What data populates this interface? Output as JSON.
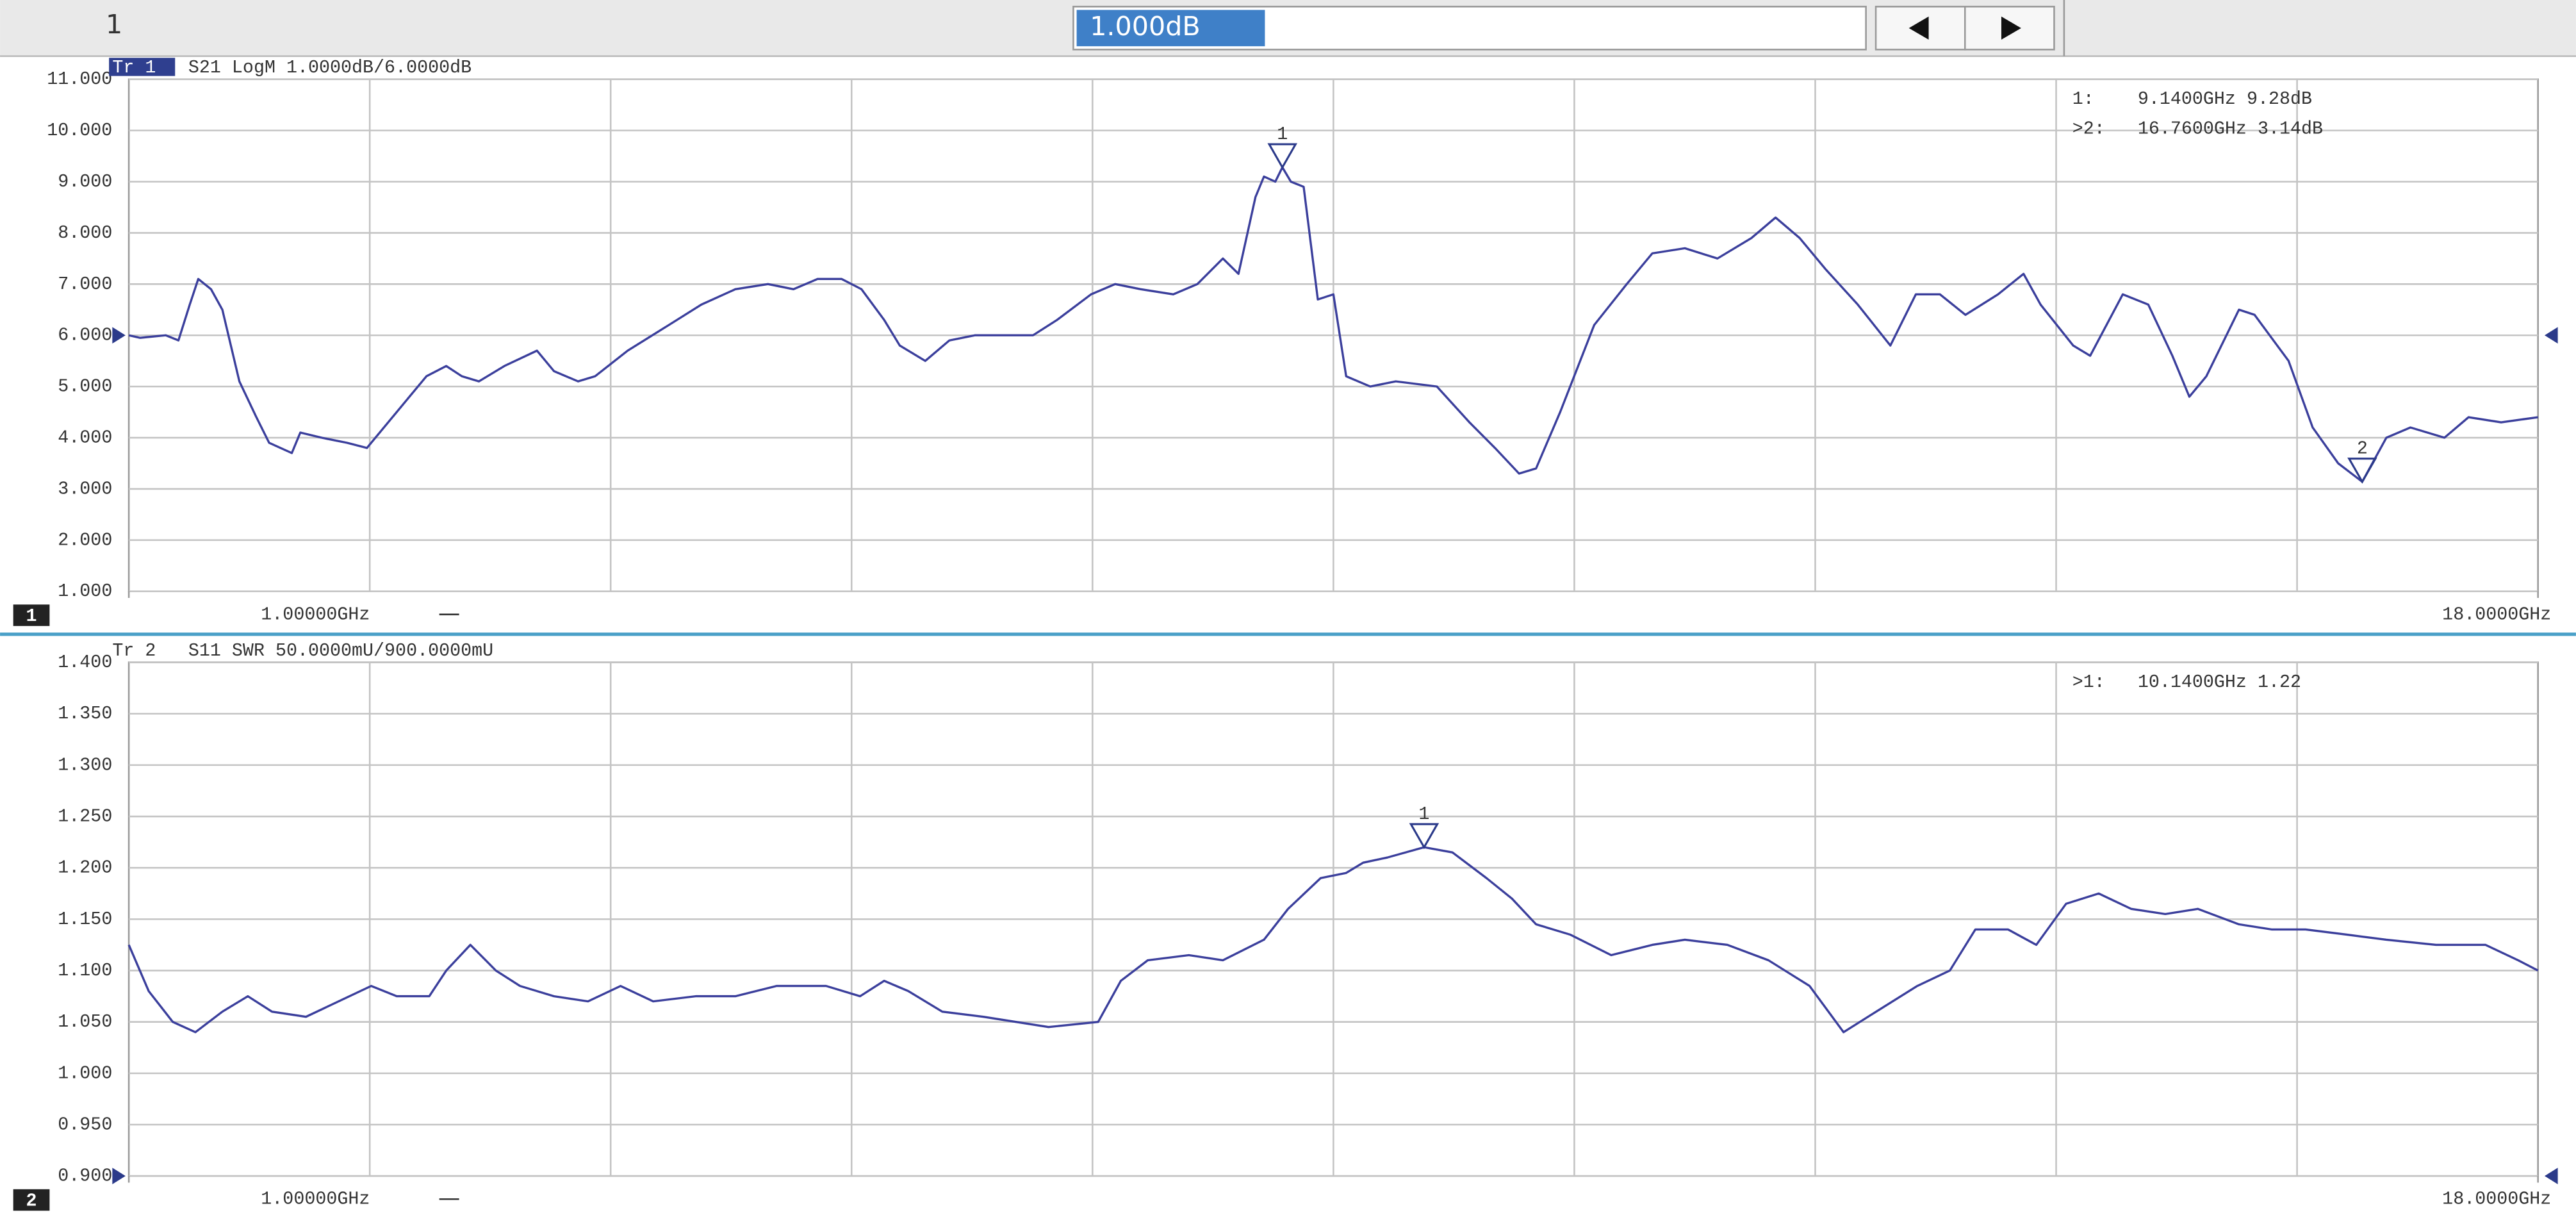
{
  "toolbar": {
    "channel": "1",
    "entry": "1.000dB"
  },
  "chart_data": [
    {
      "type": "line",
      "channel": "1",
      "trace": "Tr 1",
      "active": true,
      "title": "S21 LogM 1.0000dB/6.0000dB",
      "marker_readouts": [
        "1:    9.1400GHz 9.28dB",
        ">2:   16.7600GHz 3.14dB"
      ],
      "x": [
        1.0,
        1.08,
        1.26,
        1.35,
        1.43,
        1.49,
        1.58,
        1.66,
        1.78,
        1.9,
        1.99,
        2.07,
        2.15,
        2.21,
        2.36,
        2.54,
        2.68,
        2.83,
        2.95,
        3.1,
        3.24,
        3.35,
        3.47,
        3.65,
        3.88,
        4.0,
        4.17,
        4.29,
        4.52,
        4.81,
        5.04,
        5.28,
        5.51,
        5.69,
        5.86,
        6.03,
        6.17,
        6.33,
        6.44,
        6.62,
        6.79,
        6.97,
        7.14,
        7.38,
        7.55,
        7.79,
        7.96,
        8.14,
        8.37,
        8.54,
        8.72,
        8.83,
        8.95,
        9.01,
        9.09,
        9.14,
        9.2,
        9.29,
        9.39,
        9.5,
        9.59,
        9.76,
        9.94,
        10.23,
        10.46,
        10.64,
        10.81,
        10.93,
        11.1,
        11.34,
        11.57,
        11.75,
        11.98,
        12.21,
        12.45,
        12.62,
        12.79,
        12.97,
        13.2,
        13.43,
        13.61,
        13.78,
        13.96,
        14.19,
        14.37,
        14.49,
        14.72,
        14.84,
        15.07,
        15.25,
        15.42,
        15.54,
        15.66,
        15.89,
        16.0,
        16.24,
        16.41,
        16.59,
        16.76,
        16.93,
        17.1,
        17.34,
        17.51,
        17.74,
        18.0
      ],
      "series": [
        {
          "color": "#3b3f9c",
          "values": [
            6.0,
            5.95,
            6.0,
            5.9,
            6.6,
            7.1,
            6.9,
            6.5,
            5.1,
            4.4,
            3.9,
            3.8,
            3.7,
            4.1,
            4.0,
            3.9,
            3.8,
            4.3,
            4.7,
            5.2,
            5.4,
            5.2,
            5.1,
            5.4,
            5.7,
            5.3,
            5.1,
            5.2,
            5.7,
            6.2,
            6.6,
            6.9,
            7.0,
            6.9,
            7.1,
            7.1,
            6.9,
            6.3,
            5.8,
            5.5,
            5.9,
            6.0,
            6.0,
            6.0,
            6.3,
            6.8,
            7.0,
            6.9,
            6.8,
            7.0,
            7.5,
            7.2,
            8.7,
            9.1,
            9.0,
            9.28,
            9.0,
            8.9,
            6.7,
            6.8,
            5.2,
            5.0,
            5.1,
            5.0,
            4.3,
            3.8,
            3.3,
            3.4,
            4.5,
            6.2,
            7.0,
            7.6,
            7.7,
            7.5,
            7.9,
            8.3,
            7.9,
            7.3,
            6.6,
            5.8,
            6.8,
            6.8,
            6.4,
            6.8,
            7.2,
            6.6,
            5.8,
            5.6,
            6.8,
            6.6,
            5.6,
            4.8,
            5.2,
            6.5,
            6.4,
            5.5,
            4.2,
            3.5,
            3.14,
            4.0,
            4.2,
            4.0,
            4.4,
            4.3,
            4.4
          ]
        }
      ],
      "markers": [
        {
          "label": "1",
          "x": 9.14,
          "y": 9.28
        },
        {
          "label": "2",
          "x": 16.76,
          "y": 3.14
        }
      ],
      "xlim": [
        1,
        18
      ],
      "xticks": [
        {
          "value": 1,
          "label": "1.00000GHz"
        },
        {
          "value": 18,
          "label": "18.0000GHz"
        }
      ],
      "x_divisions": 10,
      "ylim": [
        1,
        11
      ],
      "yticks": [
        {
          "value": 1,
          "label": "1.000"
        },
        {
          "value": 2,
          "label": "2.000"
        },
        {
          "value": 3,
          "label": "3.000"
        },
        {
          "value": 4,
          "label": "4.000"
        },
        {
          "value": 5,
          "label": "5.000"
        },
        {
          "value": 6,
          "label": "6.000"
        },
        {
          "value": 7,
          "label": "7.000"
        },
        {
          "value": 8,
          "label": "8.000"
        },
        {
          "value": 9,
          "label": "9.000"
        },
        {
          "value": 10,
          "label": "10.000"
        },
        {
          "value": 11,
          "label": "11.000"
        }
      ],
      "reference": 6,
      "grid": true
    },
    {
      "type": "line",
      "channel": "2",
      "trace": "Tr 2",
      "active": false,
      "title": "S11 SWR 50.0000mU/900.0000mU",
      "marker_readouts": [
        ">1:   10.1400GHz 1.22"
      ],
      "x": [
        1.0,
        1.14,
        1.31,
        1.47,
        1.66,
        1.84,
        2.01,
        2.25,
        2.48,
        2.71,
        2.89,
        3.12,
        3.24,
        3.41,
        3.59,
        3.76,
        4.0,
        4.24,
        4.47,
        4.7,
        5.0,
        5.28,
        5.57,
        5.92,
        6.16,
        6.33,
        6.5,
        6.74,
        7.03,
        7.26,
        7.49,
        7.84,
        8.0,
        8.19,
        8.48,
        8.72,
        9.01,
        9.18,
        9.41,
        9.59,
        9.71,
        9.88,
        10.14,
        10.34,
        10.58,
        10.76,
        10.93,
        11.17,
        11.46,
        11.75,
        11.98,
        12.28,
        12.57,
        12.86,
        13.1,
        13.33,
        13.62,
        13.85,
        14.03,
        14.26,
        14.46,
        14.67,
        14.9,
        15.13,
        15.37,
        15.6,
        15.89,
        16.12,
        16.36,
        16.65,
        16.93,
        17.28,
        17.63,
        17.86,
        18.0
      ],
      "series": [
        {
          "color": "#3b3f9c",
          "values": [
            1.125,
            1.08,
            1.05,
            1.04,
            1.06,
            1.075,
            1.06,
            1.055,
            1.07,
            1.085,
            1.075,
            1.075,
            1.1,
            1.125,
            1.1,
            1.085,
            1.075,
            1.07,
            1.085,
            1.07,
            1.075,
            1.075,
            1.085,
            1.085,
            1.075,
            1.09,
            1.08,
            1.06,
            1.055,
            1.05,
            1.045,
            1.05,
            1.09,
            1.11,
            1.115,
            1.11,
            1.13,
            1.16,
            1.19,
            1.195,
            1.205,
            1.21,
            1.22,
            1.215,
            1.19,
            1.17,
            1.145,
            1.135,
            1.115,
            1.125,
            1.13,
            1.125,
            1.11,
            1.085,
            1.04,
            1.06,
            1.085,
            1.1,
            1.14,
            1.14,
            1.125,
            1.165,
            1.175,
            1.16,
            1.155,
            1.16,
            1.145,
            1.14,
            1.14,
            1.135,
            1.13,
            1.125,
            1.125,
            1.11,
            1.1
          ]
        }
      ],
      "markers": [
        {
          "label": "1",
          "x": 10.14,
          "y": 1.22
        }
      ],
      "xlim": [
        1,
        18
      ],
      "xticks": [
        {
          "value": 1,
          "label": "1.00000GHz"
        },
        {
          "value": 18,
          "label": "18.0000GHz"
        }
      ],
      "x_divisions": 10,
      "ylim": [
        0.9,
        1.4
      ],
      "yticks": [
        {
          "value": 0.9,
          "label": "0.900"
        },
        {
          "value": 0.95,
          "label": "0.950"
        },
        {
          "value": 1.0,
          "label": "1.000"
        },
        {
          "value": 1.05,
          "label": "1.050"
        },
        {
          "value": 1.1,
          "label": "1.100"
        },
        {
          "value": 1.15,
          "label": "1.150"
        },
        {
          "value": 1.2,
          "label": "1.200"
        },
        {
          "value": 1.25,
          "label": "1.250"
        },
        {
          "value": 1.3,
          "label": "1.300"
        },
        {
          "value": 1.35,
          "label": "1.350"
        },
        {
          "value": 1.4,
          "label": "1.400"
        }
      ],
      "reference": 0.9,
      "grid": true
    }
  ]
}
